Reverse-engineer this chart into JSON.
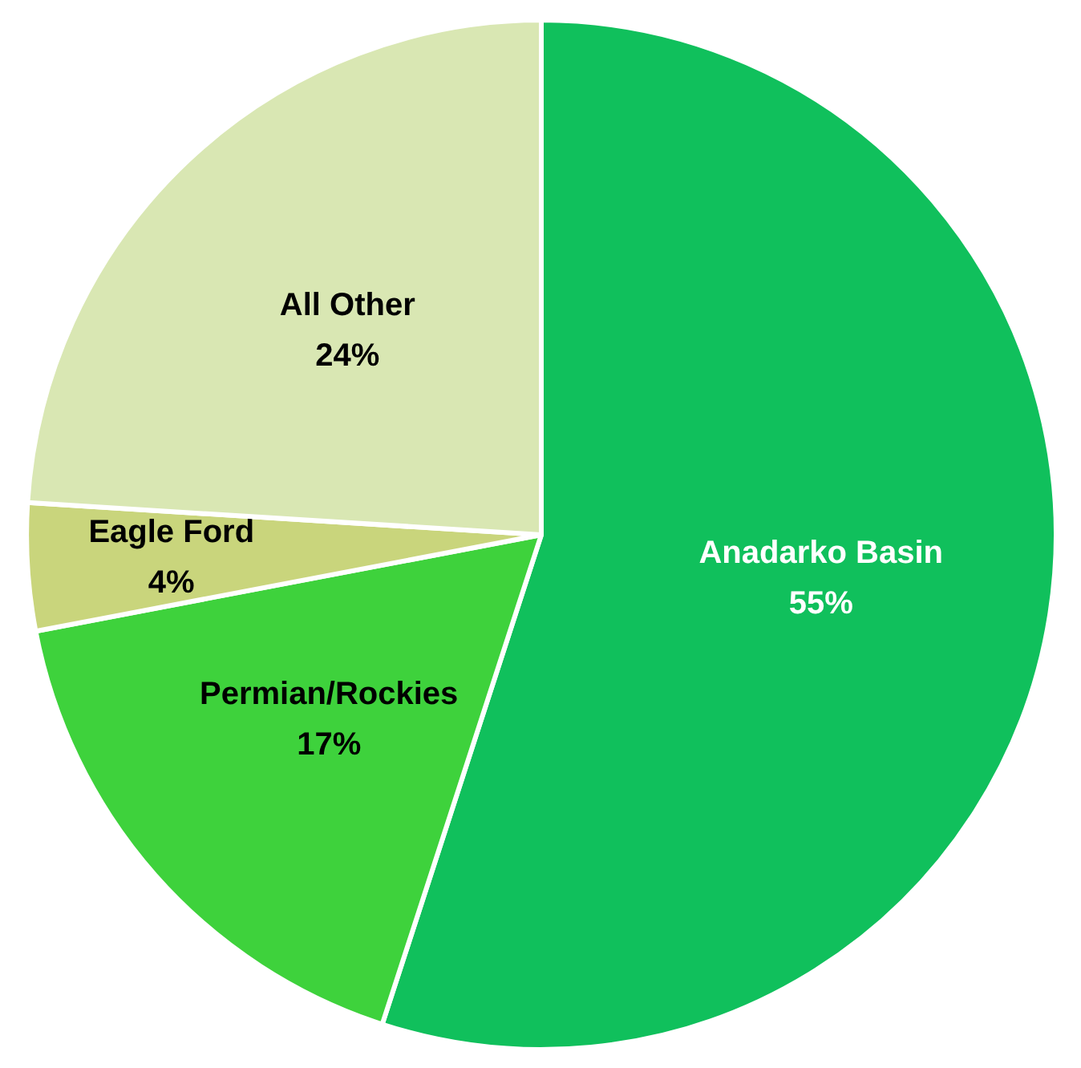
{
  "chart_data": {
    "type": "pie",
    "categories": [
      "Anadarko Basin",
      "Permian/Rockies",
      "Eagle Ford",
      "All Other"
    ],
    "values": [
      55,
      17,
      4,
      24
    ],
    "colors": [
      "#10c05c",
      "#3ed23c",
      "#c9d57c",
      "#d9e7b3"
    ],
    "value_labels": [
      "55%",
      "17%",
      "4%",
      "24%"
    ]
  }
}
